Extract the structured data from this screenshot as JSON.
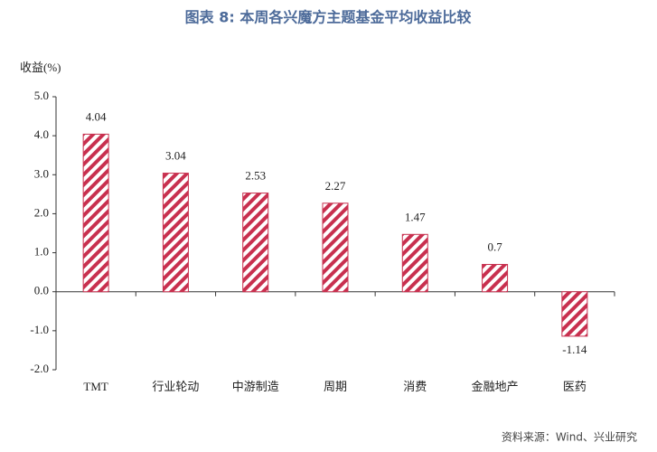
{
  "chart_data": {
    "type": "bar",
    "title": "图表 8: 本周各兴魔方主题基金平均收益比较",
    "y_label": "收益(%)",
    "source": "资料来源：Wind、兴业研究",
    "categories": [
      "TMT",
      "行业轮动",
      "中游制造",
      "周期",
      "消费",
      "金融地产",
      "医药"
    ],
    "values": [
      4.04,
      3.04,
      2.53,
      2.27,
      1.47,
      0.7,
      -1.14
    ],
    "color": "#c8304f",
    "ylim": [
      -2,
      5
    ],
    "yticks": [
      {
        "value": 5,
        "label": "5.0"
      },
      {
        "value": 4,
        "label": "4.0"
      },
      {
        "value": 3,
        "label": "3.0"
      },
      {
        "value": 2,
        "label": "2.0"
      },
      {
        "value": 1,
        "label": "1.0"
      },
      {
        "value": 0,
        "label": "0.0"
      },
      {
        "value": -1,
        "label": "-1.0"
      },
      {
        "value": -2,
        "label": "-2.0"
      }
    ],
    "grid": false
  }
}
